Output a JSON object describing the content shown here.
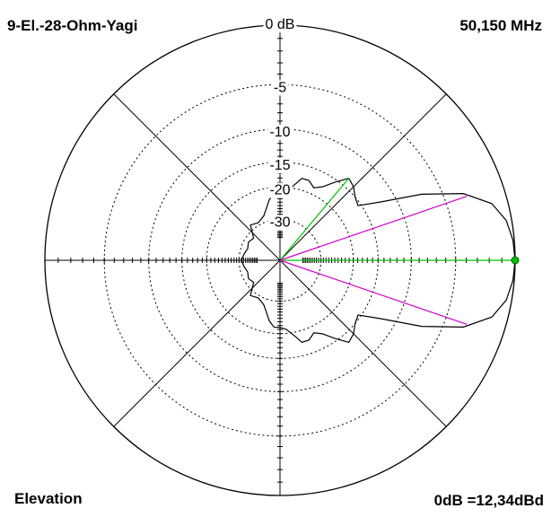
{
  "chart_data": {
    "type": "polar",
    "title": "9-El.-28-Ohm-Yagi",
    "frequency": "50,150 MHz",
    "plane": "Elevation",
    "reference": "0dB =12,34dBd",
    "rscale": "arrl",
    "rticks": [
      {
        "value": 0,
        "label": "0 dB"
      },
      -5,
      -10,
      -15,
      -20,
      -30
    ],
    "series": [
      {
        "color": "#000000",
        "angles": [
          0,
          5,
          10,
          15,
          20,
          25,
          30,
          35,
          40,
          45,
          50,
          55,
          60,
          65,
          70,
          75,
          80,
          85,
          90,
          95,
          100,
          105,
          110,
          120,
          130,
          140,
          150,
          160,
          170,
          180,
          190,
          200,
          210,
          220,
          230,
          240,
          250,
          255,
          260,
          265,
          270,
          275,
          280,
          285,
          290,
          295,
          300,
          305,
          310,
          315,
          320,
          325,
          330,
          335,
          340,
          345,
          350,
          355
        ],
        "values": [
          0,
          -0.1,
          -0.4,
          -1.2,
          -3.2,
          -7,
          -12,
          -15.5,
          -15,
          -14,
          -13.5,
          -15.5,
          -17.5,
          -18.5,
          -17.5,
          -17.5,
          -19.5,
          -21,
          -21.5,
          -21.5,
          -23,
          -25.5,
          -27.5,
          -29,
          -28,
          -33,
          -32,
          -33,
          -32,
          -31,
          -32,
          -33,
          -32,
          -33,
          -28,
          -29,
          -27.5,
          -25.5,
          -23,
          -21.5,
          -21.5,
          -21,
          -19.5,
          -17.5,
          -17.5,
          -18.5,
          -17.5,
          -15.5,
          -13.5,
          -14,
          -15,
          -15.5,
          -12,
          -7,
          -3.2,
          -1.2,
          -0.4,
          -0.1
        ]
      }
    ],
    "markers": [
      {
        "angle": 0,
        "value": 0,
        "color": "#00c000"
      },
      {
        "angle": 50,
        "value": -13.4,
        "color": "#00c000"
      },
      {
        "angle": 18.9,
        "value": -3,
        "color": "#d000d0"
      },
      {
        "angle": 341.1,
        "value": -3,
        "color": "#d000d0"
      }
    ]
  }
}
